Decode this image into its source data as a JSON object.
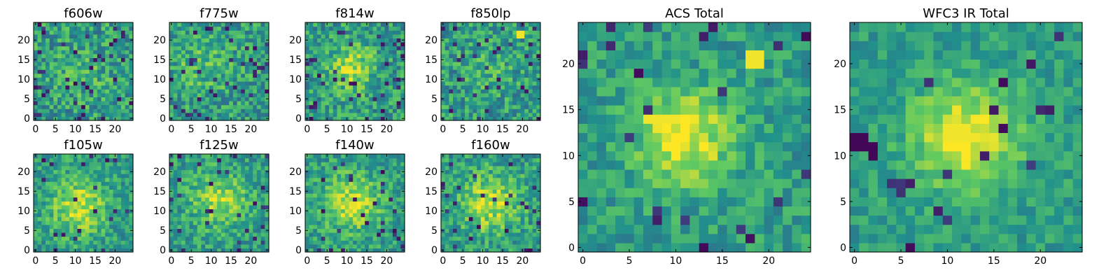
{
  "figure": {
    "description_title": "HST multi-band postage stamps",
    "colormap": [
      "#440154",
      "#3b528b",
      "#21918c",
      "#5ec962",
      "#fde725"
    ]
  },
  "chart_data": [
    {
      "type": "heatmap",
      "title": "f606w",
      "grid_size": 25,
      "x_ticks": [
        0,
        5,
        10,
        15,
        20
      ],
      "y_ticks": [
        0,
        5,
        10,
        15,
        20
      ],
      "xlim": [
        0,
        24
      ],
      "ylim": [
        0,
        24
      ],
      "seed": 11,
      "blob": {
        "cx": 12,
        "cy": 12,
        "sigma": 4,
        "amp": 0.1
      },
      "noise": 0.45,
      "dark_spots": 0.06,
      "bright_spots": []
    },
    {
      "type": "heatmap",
      "title": "f775w",
      "grid_size": 25,
      "x_ticks": [
        0,
        5,
        10,
        15,
        20
      ],
      "y_ticks": [
        0,
        5,
        10,
        15,
        20
      ],
      "xlim": [
        0,
        24
      ],
      "ylim": [
        0,
        24
      ],
      "seed": 23,
      "blob": {
        "cx": 8,
        "cy": 14,
        "sigma": 5,
        "amp": 0.15
      },
      "noise": 0.42,
      "dark_spots": 0.05,
      "bright_spots": []
    },
    {
      "type": "heatmap",
      "title": "f814w",
      "grid_size": 25,
      "x_ticks": [
        0,
        5,
        10,
        15,
        20
      ],
      "y_ticks": [
        0,
        5,
        10,
        15,
        20
      ],
      "xlim": [
        0,
        24
      ],
      "ylim": [
        0,
        24
      ],
      "seed": 37,
      "blob": {
        "cx": 11,
        "cy": 13,
        "sigma": 4,
        "amp": 0.3
      },
      "noise": 0.42,
      "dark_spots": 0.06,
      "bright_spots": []
    },
    {
      "type": "heatmap",
      "title": "f850lp",
      "grid_size": 25,
      "x_ticks": [
        0,
        5,
        10,
        15,
        20
      ],
      "y_ticks": [
        0,
        5,
        10,
        15,
        20
      ],
      "xlim": [
        0,
        24
      ],
      "ylim": [
        0,
        24
      ],
      "seed": 41,
      "blob": {
        "cx": 12,
        "cy": 12,
        "sigma": 4,
        "amp": 0.1
      },
      "noise": 0.42,
      "dark_spots": 0.07,
      "bright_spots": [
        [
          19,
          21
        ],
        [
          20,
          21
        ],
        [
          19,
          22
        ],
        [
          20,
          22
        ]
      ]
    },
    {
      "type": "heatmap",
      "title": "f105w",
      "grid_size": 25,
      "x_ticks": [
        0,
        5,
        10,
        15,
        20
      ],
      "y_ticks": [
        0,
        5,
        10,
        15,
        20
      ],
      "xlim": [
        0,
        24
      ],
      "ylim": [
        0,
        24
      ],
      "seed": 53,
      "blob": {
        "cx": 11,
        "cy": 11,
        "sigma": 5,
        "amp": 0.35
      },
      "noise": 0.35,
      "dark_spots": 0.04,
      "bright_spots": []
    },
    {
      "type": "heatmap",
      "title": "f125w",
      "grid_size": 25,
      "x_ticks": [
        0,
        5,
        10,
        15,
        20
      ],
      "y_ticks": [
        0,
        5,
        10,
        15,
        20
      ],
      "xlim": [
        0,
        24
      ],
      "ylim": [
        0,
        24
      ],
      "seed": 67,
      "blob": {
        "cx": 12,
        "cy": 13,
        "sigma": 5,
        "amp": 0.3
      },
      "noise": 0.35,
      "dark_spots": 0.04,
      "bright_spots": []
    },
    {
      "type": "heatmap",
      "title": "f140w",
      "grid_size": 25,
      "x_ticks": [
        0,
        5,
        10,
        15,
        20
      ],
      "y_ticks": [
        0,
        5,
        10,
        15,
        20
      ],
      "xlim": [
        0,
        24
      ],
      "ylim": [
        0,
        24
      ],
      "seed": 79,
      "blob": {
        "cx": 11,
        "cy": 12,
        "sigma": 5,
        "amp": 0.35
      },
      "noise": 0.35,
      "dark_spots": 0.05,
      "bright_spots": []
    },
    {
      "type": "heatmap",
      "title": "f160w",
      "grid_size": 25,
      "x_ticks": [
        0,
        5,
        10,
        15,
        20
      ],
      "y_ticks": [
        0,
        5,
        10,
        15,
        20
      ],
      "xlim": [
        0,
        24
      ],
      "ylim": [
        0,
        24
      ],
      "seed": 83,
      "blob": {
        "cx": 12,
        "cy": 12,
        "sigma": 5,
        "amp": 0.35
      },
      "noise": 0.38,
      "dark_spots": 0.05,
      "bright_spots": []
    },
    {
      "type": "heatmap",
      "title": "ACS Total",
      "grid_size": 25,
      "x_ticks": [
        0,
        5,
        10,
        15,
        20
      ],
      "y_ticks": [
        0,
        5,
        10,
        15,
        20
      ],
      "xlim": [
        0,
        24
      ],
      "ylim": [
        0,
        24
      ],
      "seed": 97,
      "blob": {
        "cx": 11,
        "cy": 12,
        "sigma": 3.5,
        "amp": 0.45
      },
      "noise": 0.3,
      "dark_spots": 0.04,
      "bright_spots": [
        [
          18,
          20
        ],
        [
          19,
          20
        ],
        [
          18,
          21
        ],
        [
          19,
          21
        ],
        [
          7,
          14
        ],
        [
          8,
          14
        ],
        [
          9,
          14
        ],
        [
          10,
          14
        ]
      ]
    },
    {
      "type": "heatmap",
      "title": "WFC3 IR Total",
      "grid_size": 25,
      "x_ticks": [
        0,
        5,
        10,
        15,
        20
      ],
      "y_ticks": [
        0,
        5,
        10,
        15,
        20
      ],
      "xlim": [
        0,
        24
      ],
      "ylim": [
        0,
        24
      ],
      "seed": 101,
      "blob": {
        "cx": 12,
        "cy": 12,
        "sigma": 4,
        "amp": 0.45
      },
      "noise": 0.25,
      "dark_spots": 0.03,
      "bright_spots": [
        [
          10,
          13
        ],
        [
          11,
          13
        ],
        [
          12,
          13
        ],
        [
          10,
          12
        ],
        [
          11,
          12
        ],
        [
          12,
          12
        ],
        [
          13,
          12
        ]
      ],
      "dark_patch": [
        [
          0,
          11
        ],
        [
          1,
          11
        ],
        [
          2,
          11
        ],
        [
          0,
          12
        ],
        [
          1,
          12
        ],
        [
          2,
          10
        ]
      ]
    }
  ]
}
